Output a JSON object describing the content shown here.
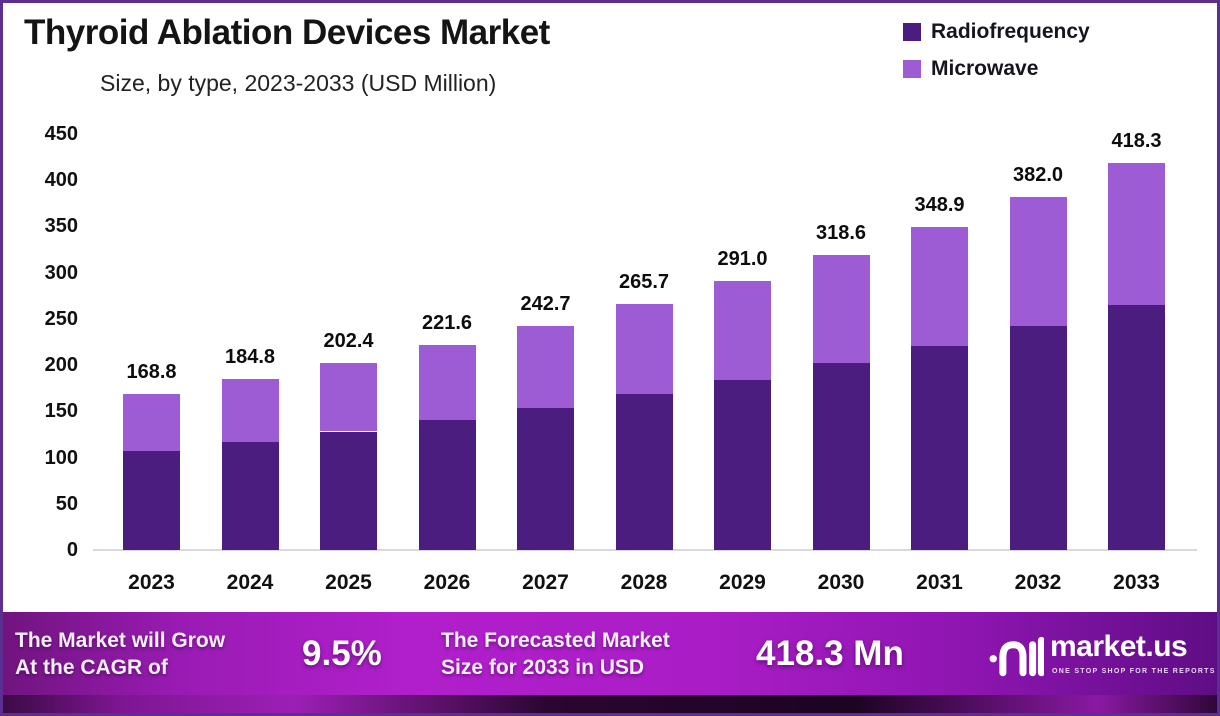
{
  "header": {
    "title": "Thyroid Ablation Devices Market",
    "subtitle": "Size, by type, 2023-2033 (USD Million)"
  },
  "legend": [
    {
      "label": "Radiofrequency",
      "color": "#4a1d7e"
    },
    {
      "label": "Microwave",
      "color": "#9d5cd4"
    }
  ],
  "chart_data": {
    "type": "bar",
    "stacked": true,
    "title": "Thyroid Ablation Devices Market",
    "subtitle": "Size, by type, 2023-2033 (USD Million)",
    "unit": "USD Million",
    "categories": [
      "2023",
      "2024",
      "2025",
      "2026",
      "2027",
      "2028",
      "2029",
      "2030",
      "2031",
      "2032",
      "2033"
    ],
    "totals": [
      168.8,
      184.8,
      202.4,
      221.6,
      242.7,
      265.7,
      291.0,
      318.6,
      348.9,
      382.0,
      418.3
    ],
    "total_labels": [
      "168.8",
      "184.8",
      "202.4",
      "221.6",
      "242.7",
      "265.7",
      "291.0",
      "318.6",
      "348.9",
      "382.0",
      "418.3"
    ],
    "series": [
      {
        "name": "Radiofrequency",
        "color": "#4a1d7e",
        "values": [
          106.9,
          117.0,
          128.1,
          140.3,
          153.6,
          168.2,
          184.2,
          201.7,
          220.9,
          241.8,
          264.8
        ]
      },
      {
        "name": "Microwave",
        "color": "#9d5cd4",
        "values": [
          61.9,
          67.8,
          74.3,
          81.3,
          89.1,
          97.5,
          106.8,
          116.9,
          128.0,
          140.2,
          153.5
        ]
      }
    ],
    "xlabel": "",
    "ylabel": "",
    "ylim": [
      0,
      450
    ],
    "ytick_step": 50,
    "grid": false,
    "legend_position": "top-right"
  },
  "banner": {
    "cagr_text_line1": "The Market will Grow",
    "cagr_text_line2": "At the CAGR of",
    "cagr_value": "9.5%",
    "forecast_text_line1": "The Forecasted Market",
    "forecast_text_line2": "Size for 2033 in USD",
    "forecast_value": "418.3 Mn",
    "logo": {
      "name": "market.us",
      "tagline": "ONE STOP SHOP FOR THE REPORTS"
    }
  }
}
